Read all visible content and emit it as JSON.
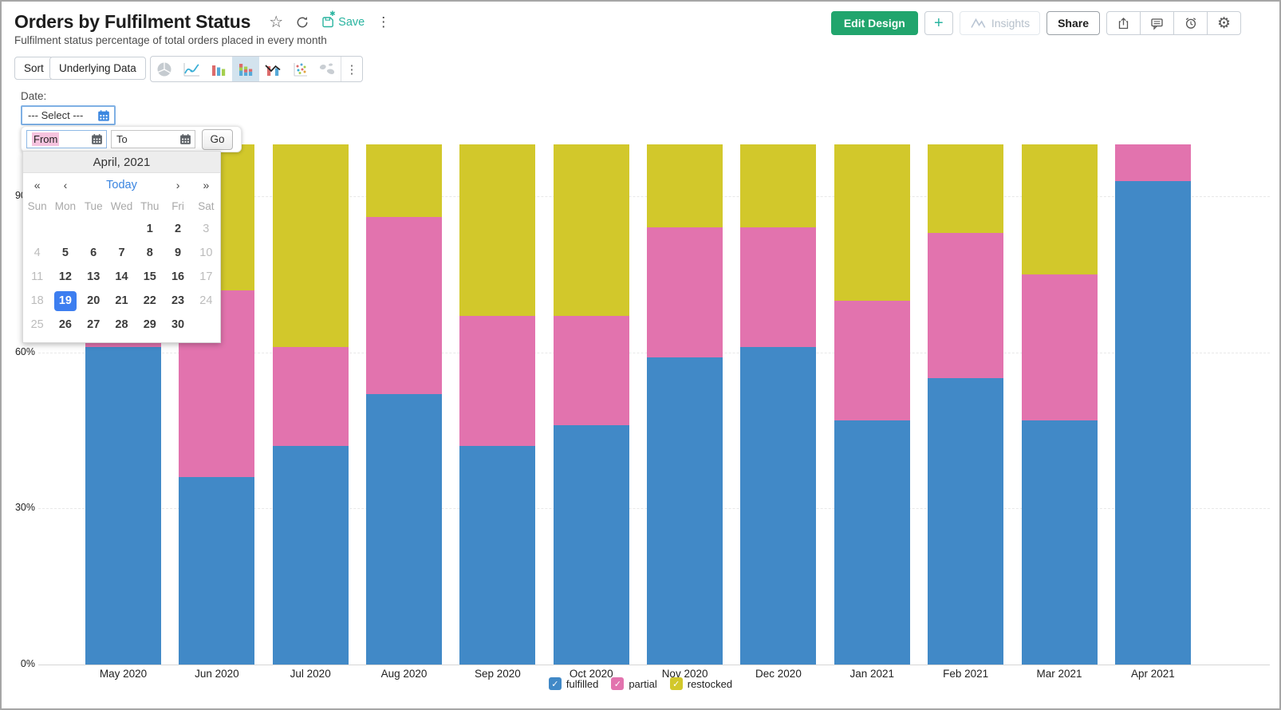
{
  "header": {
    "title": "Orders by Fulfilment Status",
    "subtitle": "Fulfilment status percentage of total orders placed in every month",
    "save_label": "Save"
  },
  "topbar": {
    "edit_design": "Edit Design",
    "plus": "+",
    "insights": "Insights",
    "share": "Share"
  },
  "toolbar": {
    "sort": "Sort",
    "underlying_data": "Underlying Data"
  },
  "filter": {
    "label": "Date:",
    "select_value": "--- Select ---",
    "from_value": "From",
    "to_value": "To",
    "go": "Go"
  },
  "calendar": {
    "title": "April, 2021",
    "nav": {
      "prev_year": "«",
      "prev_month": "‹",
      "today": "Today",
      "next_month": "›",
      "next_year": "»"
    },
    "weekdays": [
      "Sun",
      "Mon",
      "Tue",
      "Wed",
      "Thu",
      "Fri",
      "Sat"
    ],
    "cells": [
      {
        "label": "",
        "muted": false,
        "selected": false
      },
      {
        "label": "",
        "muted": false,
        "selected": false
      },
      {
        "label": "",
        "muted": false,
        "selected": false
      },
      {
        "label": "",
        "muted": false,
        "selected": false
      },
      {
        "label": "1",
        "muted": false,
        "selected": false
      },
      {
        "label": "2",
        "muted": false,
        "selected": false
      },
      {
        "label": "3",
        "muted": true,
        "selected": false
      },
      {
        "label": "4",
        "muted": true,
        "selected": false
      },
      {
        "label": "5",
        "muted": false,
        "selected": false
      },
      {
        "label": "6",
        "muted": false,
        "selected": false
      },
      {
        "label": "7",
        "muted": false,
        "selected": false
      },
      {
        "label": "8",
        "muted": false,
        "selected": false
      },
      {
        "label": "9",
        "muted": false,
        "selected": false
      },
      {
        "label": "10",
        "muted": true,
        "selected": false
      },
      {
        "label": "11",
        "muted": true,
        "selected": false
      },
      {
        "label": "12",
        "muted": false,
        "selected": false
      },
      {
        "label": "13",
        "muted": false,
        "selected": false
      },
      {
        "label": "14",
        "muted": false,
        "selected": false
      },
      {
        "label": "15",
        "muted": false,
        "selected": false
      },
      {
        "label": "16",
        "muted": false,
        "selected": false
      },
      {
        "label": "17",
        "muted": true,
        "selected": false
      },
      {
        "label": "18",
        "muted": true,
        "selected": false
      },
      {
        "label": "19",
        "muted": false,
        "selected": true
      },
      {
        "label": "20",
        "muted": false,
        "selected": false
      },
      {
        "label": "21",
        "muted": false,
        "selected": false
      },
      {
        "label": "22",
        "muted": false,
        "selected": false
      },
      {
        "label": "23",
        "muted": false,
        "selected": false
      },
      {
        "label": "24",
        "muted": true,
        "selected": false
      },
      {
        "label": "25",
        "muted": true,
        "selected": false
      },
      {
        "label": "26",
        "muted": false,
        "selected": false
      },
      {
        "label": "27",
        "muted": false,
        "selected": false
      },
      {
        "label": "28",
        "muted": false,
        "selected": false
      },
      {
        "label": "29",
        "muted": false,
        "selected": false
      },
      {
        "label": "30",
        "muted": false,
        "selected": false
      },
      {
        "label": "",
        "muted": false,
        "selected": false
      }
    ]
  },
  "chart_data": {
    "type": "bar",
    "stacked": true,
    "unit": "percent",
    "categories": [
      "May 2020",
      "Jun 2020",
      "Jul 2020",
      "Aug 2020",
      "Sep 2020",
      "Oct 2020",
      "Nov 2020",
      "Dec 2020",
      "Jan 2021",
      "Feb 2021",
      "Mar 2021",
      "Apr 2021"
    ],
    "series": [
      {
        "name": "fulfilled",
        "color": "#4189C7",
        "values": [
          61,
          36,
          42,
          52,
          42,
          46,
          59,
          61,
          47,
          55,
          47,
          93
        ]
      },
      {
        "name": "partial",
        "color": "#E273AE",
        "values": [
          26,
          36,
          19,
          34,
          25,
          21,
          25,
          23,
          23,
          28,
          28,
          7
        ]
      },
      {
        "name": "restocked",
        "color": "#D2C82B",
        "values": [
          13,
          28,
          39,
          14,
          33,
          33,
          16,
          16,
          30,
          17,
          25,
          0
        ]
      }
    ],
    "y_ticks": [
      "0%",
      "30%",
      "60%",
      "90%"
    ],
    "ylim": [
      0,
      100
    ],
    "grid": "horizontal-dashed",
    "legend_position": "bottom"
  },
  "icons": {
    "checkmark": "✓"
  },
  "colors": {
    "fulfilled_blue": "#4189C7",
    "partial_pink": "#E273AE",
    "restocked_yellow": "#D2C82B",
    "edit_design_green": "#21A56D",
    "save_teal": "#2AB4A0",
    "selected_day_blue": "#3D7EF0",
    "today_link_blue": "#3984E0",
    "selected_chart_tool_bg": "#D3E3EE"
  }
}
